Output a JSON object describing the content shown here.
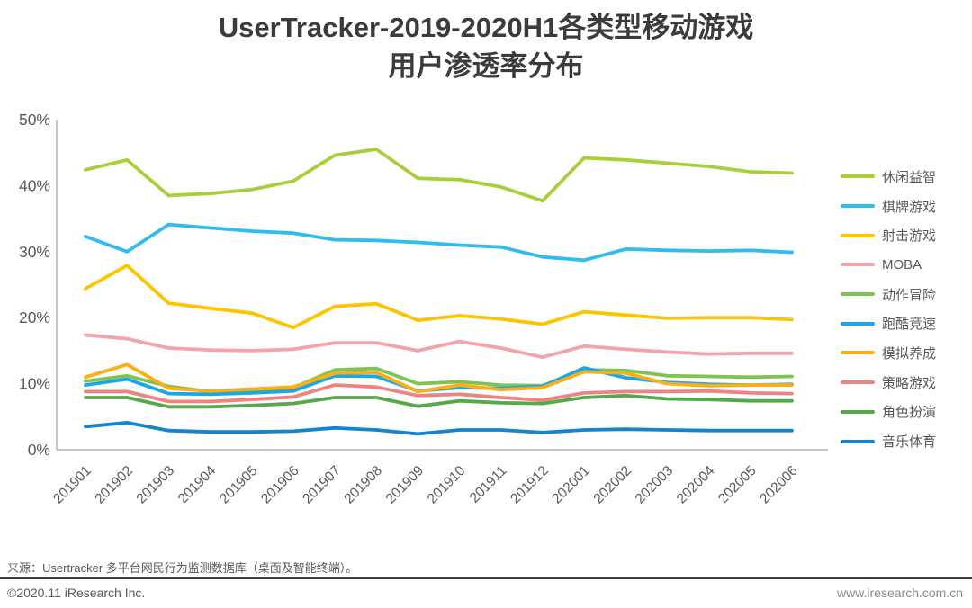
{
  "title": {
    "line1": "UserTracker-2019-2020H1各类型移动游戏",
    "line2": "用户渗透率分布"
  },
  "footer": {
    "source": "来源：Usertracker 多平台网民行为监测数据库（桌面及智能终端）。",
    "copyright": "©2020.11 iResearch Inc.",
    "website": "www.iresearch.com.cn"
  },
  "chart_data": {
    "type": "line",
    "title": "UserTracker-2019-2020H1各类型移动游戏用户渗透率分布",
    "xlabel": "",
    "ylabel": "",
    "ylim": [
      0,
      50
    ],
    "yticks": [
      "0%",
      "10%",
      "20%",
      "30%",
      "40%",
      "50%"
    ],
    "grid": false,
    "legend_position": "right",
    "x": [
      "201901",
      "201902",
      "201903",
      "201904",
      "201905",
      "201906",
      "201907",
      "201908",
      "201909",
      "201910",
      "201911",
      "201912",
      "202001",
      "202002",
      "202003",
      "202004",
      "202005",
      "202006"
    ],
    "series": [
      {
        "name": "休闲益智",
        "color": "#a9cf38",
        "values": [
          42.4,
          43.9,
          38.5,
          38.8,
          39.4,
          40.7,
          44.6,
          45.5,
          41.1,
          40.9,
          39.8,
          37.7,
          44.2,
          43.9,
          43.4,
          42.9,
          42.1,
          41.9
        ]
      },
      {
        "name": "棋牌游戏",
        "color": "#2fbcf1",
        "values": [
          32.3,
          30.0,
          34.1,
          33.6,
          33.1,
          32.8,
          31.8,
          31.7,
          31.4,
          31.0,
          30.7,
          29.2,
          28.7,
          30.4,
          30.2,
          30.1,
          30.2,
          29.9
        ]
      },
      {
        "name": "射击游戏",
        "color": "#fdc500",
        "values": [
          24.4,
          27.9,
          22.2,
          21.4,
          20.7,
          18.5,
          21.7,
          22.1,
          19.6,
          20.3,
          19.8,
          19.0,
          20.9,
          20.4,
          19.9,
          20.0,
          20.0,
          19.7
        ]
      },
      {
        "name": "MOBA",
        "color": "#f5a3a9",
        "values": [
          17.4,
          16.8,
          15.4,
          15.1,
          15.0,
          15.2,
          16.2,
          16.2,
          15.0,
          16.4,
          15.4,
          14.0,
          15.7,
          15.2,
          14.8,
          14.5,
          14.6,
          14.6
        ]
      },
      {
        "name": "动作冒险",
        "color": "#7fc351",
        "values": [
          10.4,
          11.2,
          9.6,
          8.8,
          9.0,
          9.4,
          12.1,
          12.3,
          10.0,
          10.3,
          9.8,
          9.7,
          12.1,
          12.0,
          11.2,
          11.1,
          11.0,
          11.1
        ]
      },
      {
        "name": "跑酷竞速",
        "color": "#18a8e8",
        "values": [
          9.8,
          10.7,
          8.5,
          8.4,
          8.6,
          8.9,
          11.2,
          11.1,
          8.9,
          9.4,
          9.3,
          9.6,
          12.4,
          10.9,
          10.2,
          9.9,
          9.8,
          9.9
        ]
      },
      {
        "name": "模拟养成",
        "color": "#fbae17",
        "values": [
          11.0,
          12.9,
          9.3,
          8.9,
          9.2,
          9.5,
          11.6,
          11.7,
          8.8,
          9.8,
          9.1,
          9.4,
          11.8,
          11.6,
          10.0,
          9.7,
          9.8,
          9.8
        ]
      },
      {
        "name": "策略游戏",
        "color": "#ef8382",
        "values": [
          8.8,
          8.8,
          7.3,
          7.3,
          7.6,
          8.0,
          9.8,
          9.5,
          8.2,
          8.4,
          7.9,
          7.5,
          8.6,
          8.8,
          8.8,
          8.9,
          8.6,
          8.5
        ]
      },
      {
        "name": "角色扮演",
        "color": "#57a84c",
        "values": [
          7.9,
          7.9,
          6.5,
          6.5,
          6.7,
          7.0,
          7.9,
          7.9,
          6.6,
          7.4,
          7.1,
          7.0,
          7.9,
          8.2,
          7.7,
          7.6,
          7.4,
          7.4
        ]
      },
      {
        "name": "音乐体育",
        "color": "#1185cf",
        "values": [
          3.5,
          4.1,
          2.9,
          2.7,
          2.7,
          2.8,
          3.3,
          3.0,
          2.4,
          3.0,
          3.0,
          2.6,
          3.0,
          3.1,
          3.0,
          2.9,
          2.9,
          2.9
        ]
      }
    ],
    "axis_color": "#b3b3b3",
    "tick_label_color": "#595959"
  }
}
